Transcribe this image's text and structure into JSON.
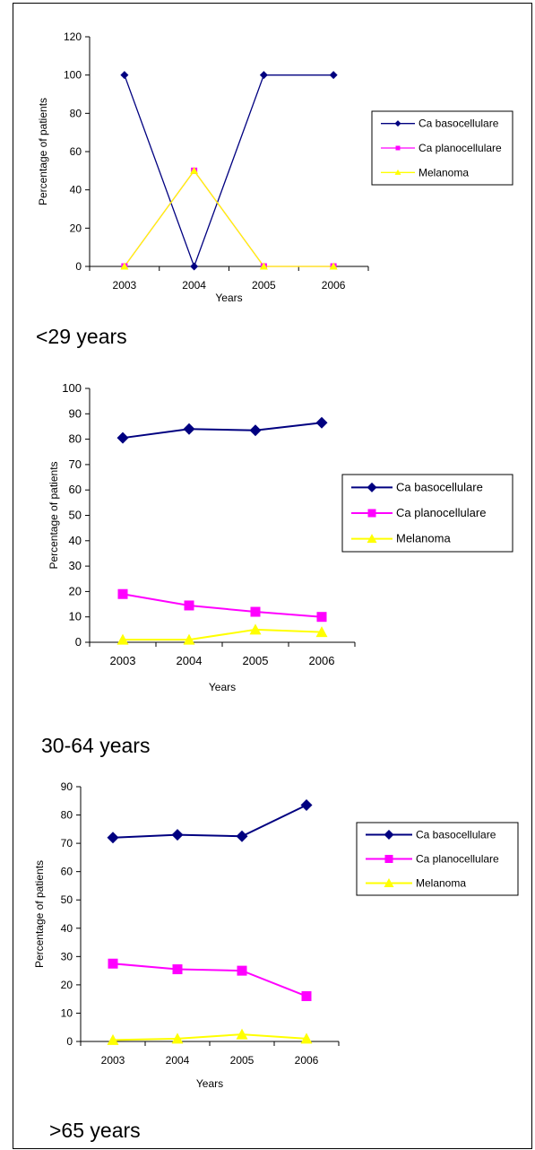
{
  "chart_data": [
    {
      "type": "line",
      "caption": "<29 years",
      "xlabel": "Years",
      "ylabel": "Percentage of patients",
      "categories": [
        "2003",
        "2004",
        "2005",
        "2006"
      ],
      "ylim": [
        0,
        120
      ],
      "yticks": [
        0,
        20,
        40,
        60,
        80,
        100,
        120
      ],
      "legend_position": "right",
      "series": [
        {
          "name": "Ca basocellulare",
          "color": "#000080",
          "marker": "diamond",
          "values": [
            100,
            0,
            100,
            100
          ]
        },
        {
          "name": "Ca planocellulare",
          "color": "#ff00ff",
          "marker": "square",
          "values": [
            0,
            50,
            0,
            0
          ]
        },
        {
          "name": "Melanoma",
          "color": "#ffff00",
          "marker": "triangle",
          "values": [
            0,
            50,
            0,
            0
          ]
        }
      ]
    },
    {
      "type": "line",
      "caption": "30-64 years",
      "xlabel": "Years",
      "ylabel": "Percentage of patients",
      "categories": [
        "2003",
        "2004",
        "2005",
        "2006"
      ],
      "ylim": [
        0,
        100
      ],
      "yticks": [
        0,
        10,
        20,
        30,
        40,
        50,
        60,
        70,
        80,
        90,
        100
      ],
      "legend_position": "right",
      "series": [
        {
          "name": "Ca basocellulare",
          "color": "#000080",
          "marker": "diamond",
          "values": [
            80.5,
            84,
            83.5,
            86.5
          ]
        },
        {
          "name": "Ca planocellulare",
          "color": "#ff00ff",
          "marker": "square",
          "values": [
            19,
            14.5,
            12,
            10
          ]
        },
        {
          "name": "Melanoma",
          "color": "#ffff00",
          "marker": "triangle",
          "values": [
            1,
            1,
            5,
            4
          ]
        }
      ]
    },
    {
      "type": "line",
      "caption": ">65 years",
      "xlabel": "Years",
      "ylabel": "Percentage of patients",
      "categories": [
        "2003",
        "2004",
        "2005",
        "2006"
      ],
      "ylim": [
        0,
        90
      ],
      "yticks": [
        0,
        10,
        20,
        30,
        40,
        50,
        60,
        70,
        80,
        90
      ],
      "legend_position": "right",
      "series": [
        {
          "name": "Ca basocellulare",
          "color": "#000080",
          "marker": "diamond",
          "values": [
            72,
            73,
            72.5,
            83.5
          ]
        },
        {
          "name": "Ca planocellulare",
          "color": "#ff00ff",
          "marker": "square",
          "values": [
            27.5,
            25.5,
            25,
            16
          ]
        },
        {
          "name": "Melanoma",
          "color": "#ffff00",
          "marker": "triangle",
          "values": [
            0.5,
            1,
            2.5,
            1
          ]
        }
      ]
    }
  ]
}
